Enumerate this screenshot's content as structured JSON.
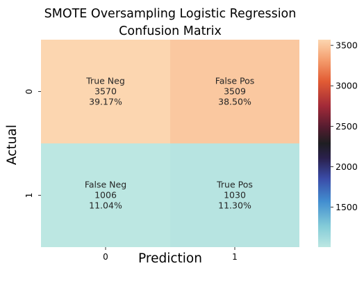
{
  "chart_data": {
    "type": "heatmap",
    "title_lines": [
      "SMOTE Oversampling Logistic Regression",
      "Confusion Matrix"
    ],
    "xlabel": "Prediction",
    "ylabel": "Actual",
    "x_categories": [
      "0",
      "1"
    ],
    "y_categories": [
      "0",
      "1"
    ],
    "cells": [
      [
        {
          "label": "True Neg",
          "value": 3570,
          "percent": "39.17%"
        },
        {
          "label": "False Pos",
          "value": 3509,
          "percent": "38.50%"
        }
      ],
      [
        {
          "label": "False Neg",
          "value": 1006,
          "percent": "11.04%"
        },
        {
          "label": "True Pos",
          "value": 1030,
          "percent": "11.30%"
        }
      ]
    ],
    "colormap": "icefire",
    "colorbar": {
      "min": 1006,
      "max": 3570,
      "ticks": [
        1500,
        2000,
        2500,
        3000,
        3500
      ]
    }
  }
}
